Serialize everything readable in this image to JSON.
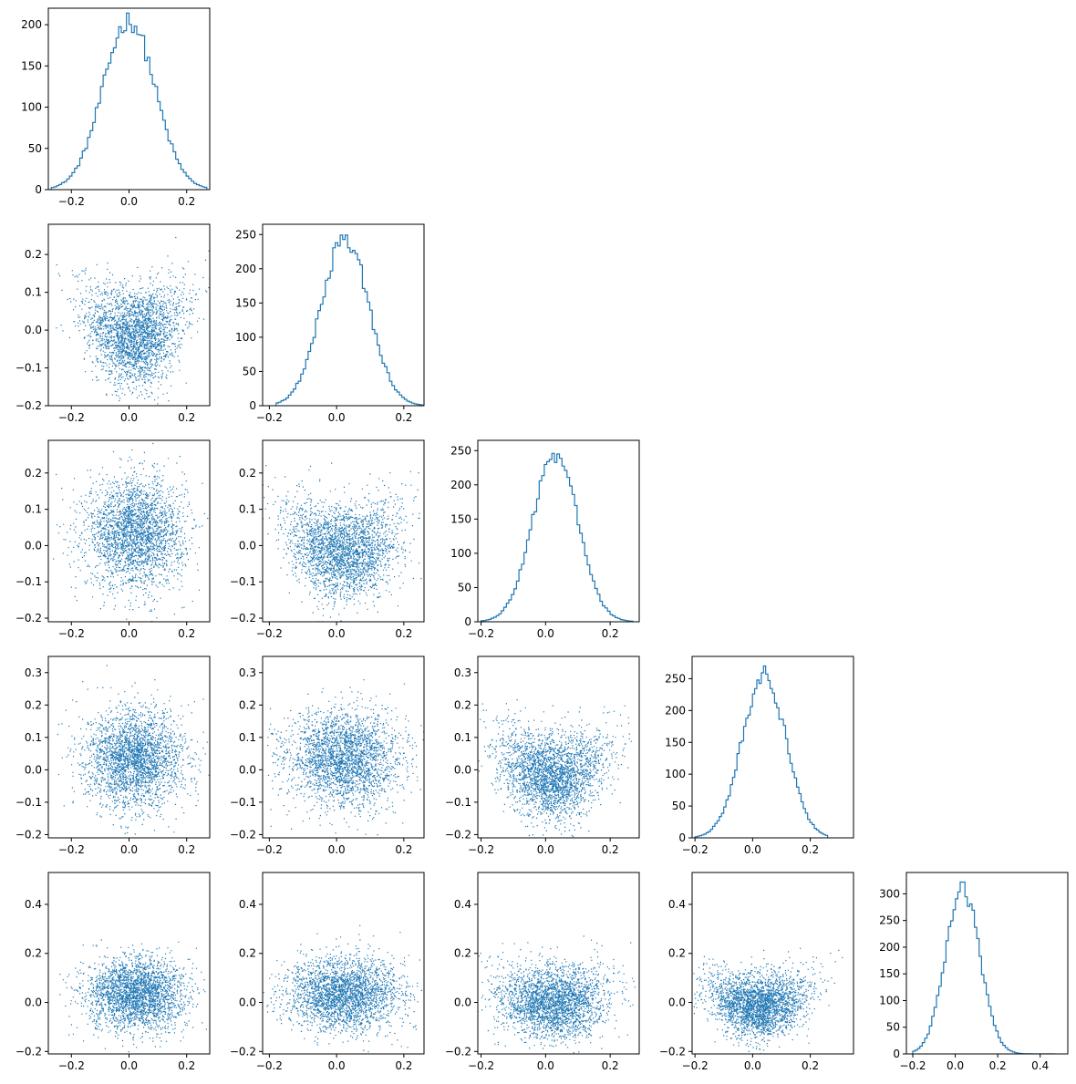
{
  "figure": {
    "type": "corner-plot",
    "rows": 5,
    "cols": 5,
    "color": "#1f77b4"
  },
  "chart_data": [
    {
      "panel": "1-1",
      "type": "histogram",
      "variable": 1,
      "xlim": [
        -0.28,
        0.28
      ],
      "ylim": [
        0,
        220
      ],
      "xticks": [
        "−0.2",
        "0.0",
        "0.2"
      ],
      "yticks": [
        "0",
        "50",
        "100",
        "150",
        "200"
      ],
      "ytick_values": [
        0,
        50,
        100,
        150,
        200
      ],
      "xtick_values": [
        -0.2,
        0.0,
        0.2
      ],
      "stats": {
        "mean": 0.0,
        "sd": 0.09,
        "range": [
          -0.27,
          0.27
        ],
        "peak": 214
      }
    },
    {
      "panel": "2-1",
      "type": "scatter",
      "x_variable": 1,
      "y_variable": 2,
      "xlim": [
        -0.28,
        0.28
      ],
      "ylim": [
        -0.2,
        0.28
      ],
      "xticks": [
        "−0.2",
        "0.0",
        "0.2"
      ],
      "yticks": [
        "−0.2",
        "−0.1",
        "0.0",
        "0.1",
        "0.2"
      ],
      "xtick_values": [
        -0.2,
        0.0,
        0.2
      ],
      "ytick_values": [
        -0.2,
        -0.1,
        0.0,
        0.1,
        0.2
      ],
      "relation": "u-shape"
    },
    {
      "panel": "2-2",
      "type": "histogram",
      "variable": 2,
      "xlim": [
        -0.22,
        0.26
      ],
      "ylim": [
        0,
        265
      ],
      "xticks": [
        "−0.2",
        "0.0",
        "0.2"
      ],
      "yticks": [
        "0",
        "50",
        "100",
        "150",
        "200",
        "250"
      ],
      "xtick_values": [
        -0.2,
        0.0,
        0.2
      ],
      "ytick_values": [
        0,
        50,
        100,
        150,
        200,
        250
      ],
      "stats": {
        "mean": 0.025,
        "sd": 0.07,
        "range": [
          -0.18,
          0.26
        ],
        "peak": 256
      }
    },
    {
      "panel": "3-1",
      "type": "scatter",
      "x_variable": 1,
      "y_variable": 3,
      "xlim": [
        -0.28,
        0.28
      ],
      "ylim": [
        -0.21,
        0.29
      ],
      "xticks": [
        "−0.2",
        "0.0",
        "0.2"
      ],
      "yticks": [
        "−0.2",
        "−0.1",
        "0.0",
        "0.1",
        "0.2"
      ],
      "xtick_values": [
        -0.2,
        0.0,
        0.2
      ],
      "ytick_values": [
        -0.2,
        -0.1,
        0.0,
        0.1,
        0.2
      ],
      "relation": "independent"
    },
    {
      "panel": "3-2",
      "type": "scatter",
      "x_variable": 2,
      "y_variable": 3,
      "xlim": [
        -0.22,
        0.26
      ],
      "ylim": [
        -0.21,
        0.29
      ],
      "xticks": [
        "−0.2",
        "0.0",
        "0.2"
      ],
      "yticks": [
        "−0.2",
        "−0.1",
        "0.0",
        "0.1",
        "0.2"
      ],
      "xtick_values": [
        -0.2,
        0.0,
        0.2
      ],
      "ytick_values": [
        -0.2,
        -0.1,
        0.0,
        0.1,
        0.2
      ],
      "relation": "u-shape"
    },
    {
      "panel": "3-3",
      "type": "histogram",
      "variable": 3,
      "xlim": [
        -0.21,
        0.29
      ],
      "ylim": [
        0,
        265
      ],
      "xticks": [
        "−0.2",
        "0.0",
        "0.2"
      ],
      "yticks": [
        "0",
        "50",
        "100",
        "150",
        "200",
        "250"
      ],
      "xtick_values": [
        -0.2,
        0.0,
        0.2
      ],
      "ytick_values": [
        0,
        50,
        100,
        150,
        200,
        250
      ],
      "stats": {
        "mean": 0.03,
        "sd": 0.07,
        "range": [
          -0.2,
          0.27
        ],
        "peak": 254
      }
    },
    {
      "panel": "4-1",
      "type": "scatter",
      "x_variable": 1,
      "y_variable": 4,
      "xlim": [
        -0.28,
        0.28
      ],
      "ylim": [
        -0.21,
        0.35
      ],
      "xticks": [
        "−0.2",
        "0.0",
        "0.2"
      ],
      "yticks": [
        "−0.2",
        "−0.1",
        "0.0",
        "0.1",
        "0.2",
        "0.3"
      ],
      "xtick_values": [
        -0.2,
        0.0,
        0.2
      ],
      "ytick_values": [
        -0.2,
        -0.1,
        0.0,
        0.1,
        0.2,
        0.3
      ],
      "relation": "independent"
    },
    {
      "panel": "4-2",
      "type": "scatter",
      "x_variable": 2,
      "y_variable": 4,
      "xlim": [
        -0.22,
        0.26
      ],
      "ylim": [
        -0.21,
        0.35
      ],
      "xticks": [
        "−0.2",
        "0.0",
        "0.2"
      ],
      "yticks": [
        "−0.2",
        "−0.1",
        "0.0",
        "0.1",
        "0.2",
        "0.3"
      ],
      "xtick_values": [
        -0.2,
        0.0,
        0.2
      ],
      "ytick_values": [
        -0.2,
        -0.1,
        0.0,
        0.1,
        0.2,
        0.3
      ],
      "relation": "independent"
    },
    {
      "panel": "4-3",
      "type": "scatter",
      "x_variable": 3,
      "y_variable": 4,
      "xlim": [
        -0.21,
        0.29
      ],
      "ylim": [
        -0.21,
        0.35
      ],
      "xticks": [
        "−0.2",
        "0.0",
        "0.2"
      ],
      "yticks": [
        "−0.2",
        "−0.1",
        "0.0",
        "0.1",
        "0.2",
        "0.3"
      ],
      "xtick_values": [
        -0.2,
        0.0,
        0.2
      ],
      "ytick_values": [
        -0.2,
        -0.1,
        0.0,
        0.1,
        0.2,
        0.3
      ],
      "relation": "u-shape"
    },
    {
      "panel": "4-4",
      "type": "histogram",
      "variable": 4,
      "xlim": [
        -0.21,
        0.35
      ],
      "ylim": [
        0,
        285
      ],
      "xticks": [
        "−0.2",
        "0.0",
        "0.2"
      ],
      "yticks": [
        "0",
        "50",
        "100",
        "150",
        "200",
        "250"
      ],
      "xtick_values": [
        -0.2,
        0.0,
        0.2
      ],
      "ytick_values": [
        0,
        50,
        100,
        150,
        200,
        250
      ],
      "stats": {
        "mean": 0.04,
        "sd": 0.075,
        "range": [
          -0.2,
          0.26
        ],
        "peak": 270
      }
    },
    {
      "panel": "5-1",
      "type": "scatter",
      "x_variable": 1,
      "y_variable": 5,
      "xlim": [
        -0.28,
        0.28
      ],
      "ylim": [
        -0.21,
        0.53
      ],
      "xticks": [
        "−0.2",
        "0.0",
        "0.2"
      ],
      "yticks": [
        "−0.2",
        "0.0",
        "0.2",
        "0.4"
      ],
      "xtick_values": [
        -0.2,
        0.0,
        0.2
      ],
      "ytick_values": [
        -0.2,
        0.0,
        0.2,
        0.4
      ],
      "relation": "independent"
    },
    {
      "panel": "5-2",
      "type": "scatter",
      "x_variable": 2,
      "y_variable": 5,
      "xlim": [
        -0.22,
        0.26
      ],
      "ylim": [
        -0.21,
        0.53
      ],
      "xticks": [
        "−0.2",
        "0.0",
        "0.2"
      ],
      "yticks": [
        "−0.2",
        "0.0",
        "0.2",
        "0.4"
      ],
      "xtick_values": [
        -0.2,
        0.0,
        0.2
      ],
      "ytick_values": [
        -0.2,
        0.0,
        0.2,
        0.4
      ],
      "relation": "independent"
    },
    {
      "panel": "5-3",
      "type": "scatter",
      "x_variable": 3,
      "y_variable": 5,
      "xlim": [
        -0.21,
        0.29
      ],
      "ylim": [
        -0.21,
        0.53
      ],
      "xticks": [
        "−0.2",
        "0.0",
        "0.2"
      ],
      "yticks": [
        "−0.2",
        "0.0",
        "0.2",
        "0.4"
      ],
      "xtick_values": [
        -0.2,
        0.0,
        0.2
      ],
      "ytick_values": [
        -0.2,
        0.0,
        0.2,
        0.4
      ],
      "relation": "weak-u"
    },
    {
      "panel": "5-4",
      "type": "scatter",
      "x_variable": 4,
      "y_variable": 5,
      "xlim": [
        -0.21,
        0.35
      ],
      "ylim": [
        -0.21,
        0.53
      ],
      "xticks": [
        "−0.2",
        "0.0",
        "0.2"
      ],
      "yticks": [
        "−0.2",
        "0.0",
        "0.2",
        "0.4"
      ],
      "xtick_values": [
        -0.2,
        0.0,
        0.2
      ],
      "ytick_values": [
        -0.2,
        0.0,
        0.2,
        0.4
      ],
      "relation": "u-shape"
    },
    {
      "panel": "5-5",
      "type": "histogram",
      "variable": 5,
      "xlim": [
        -0.23,
        0.53
      ],
      "ylim": [
        0,
        340
      ],
      "xticks": [
        "−0.2",
        "0.0",
        "0.2",
        "0.4"
      ],
      "yticks": [
        "0",
        "50",
        "100",
        "150",
        "200",
        "250",
        "300"
      ],
      "xtick_values": [
        -0.2,
        0.0,
        0.2,
        0.4
      ],
      "ytick_values": [
        0,
        50,
        100,
        150,
        200,
        250,
        300
      ],
      "stats": {
        "mean": 0.035,
        "sd": 0.08,
        "range": [
          -0.2,
          0.47
        ],
        "peak": 322
      }
    }
  ]
}
